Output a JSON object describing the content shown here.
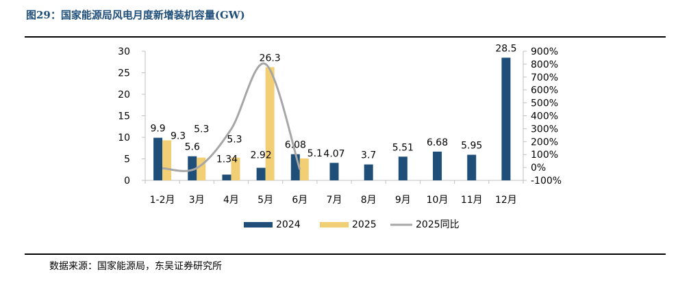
{
  "figure": {
    "title": "图29：国家能源局风电月度新增装机容量(GW)",
    "source": "数据来源：国家能源局，东吴证券研究所"
  },
  "colors": {
    "title": "#1f4e79",
    "bar_2024": "#1f4e79",
    "bar_2025": "#f2ce74",
    "line_2025_yoy": "#a6a6a6"
  },
  "chart_data": {
    "type": "bar",
    "categories": [
      "1-2月",
      "3月",
      "4月",
      "5月",
      "6月",
      "7月",
      "8月",
      "9月",
      "10月",
      "11月",
      "12月"
    ],
    "series": [
      {
        "name": "2024",
        "kind": "bar",
        "axis": "left",
        "values": [
          9.9,
          5.6,
          1.34,
          2.92,
          6.08,
          4.07,
          3.7,
          5.51,
          6.68,
          5.95,
          28.5
        ],
        "labels": [
          "9.9",
          "5.6",
          "1.34",
          "2.92",
          "6.08",
          "4.07",
          "3.7",
          "5.51",
          "6.68",
          "5.95",
          "28.5"
        ]
      },
      {
        "name": "2025",
        "kind": "bar",
        "axis": "left",
        "values": [
          9.3,
          5.3,
          5.3,
          26.3,
          5.1,
          null,
          null,
          null,
          null,
          null,
          null
        ],
        "labels": [
          "9.3",
          "5.3",
          "5.3",
          "26.3",
          "5.1",
          null,
          null,
          null,
          null,
          null,
          null
        ]
      },
      {
        "name": "2025同比",
        "kind": "line",
        "axis": "right",
        "unit": "%",
        "values": [
          -6,
          -5,
          296,
          801,
          -16,
          null,
          null,
          null,
          null,
          null,
          null
        ]
      }
    ],
    "ylim": [
      0,
      30
    ],
    "yticks": [
      0,
      5,
      10,
      15,
      20,
      25,
      30
    ],
    "y2lim": [
      -100,
      900
    ],
    "y2ticks": [
      "-100%",
      "0%",
      "100%",
      "200%",
      "300%",
      "400%",
      "500%",
      "600%",
      "700%",
      "800%",
      "900%"
    ],
    "legend": [
      "2024",
      "2025",
      "2025同比"
    ],
    "legend_position": "bottom",
    "grid": false
  }
}
